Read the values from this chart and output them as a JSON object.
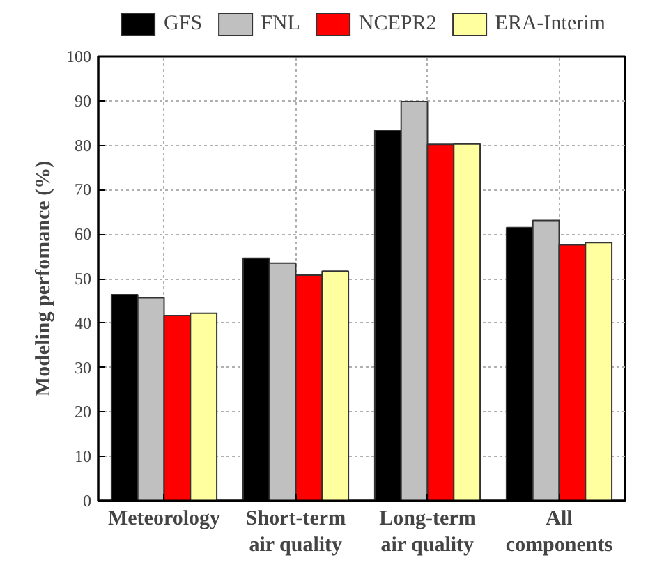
{
  "chart_data": {
    "type": "bar",
    "ylabel": "Modeling perfomance (%)",
    "categories": [
      "Meteorology",
      "Short-term\nair quality",
      "Long-term\nair quality",
      "All\ncomponents"
    ],
    "series": [
      {
        "name": "GFS",
        "color": "#000000",
        "values": [
          46.4,
          54.6,
          83.4,
          61.5
        ]
      },
      {
        "name": "FNL",
        "color": "#c0c0c0",
        "values": [
          45.7,
          53.5,
          89.8,
          63.1
        ]
      },
      {
        "name": "NCEPR2",
        "color": "#ff0000",
        "values": [
          41.7,
          50.8,
          80.2,
          57.6
        ]
      },
      {
        "name": "ERA-Interim",
        "color": "#ffffa0",
        "values": [
          42.2,
          51.7,
          80.3,
          58.1
        ]
      }
    ],
    "ylim": [
      0,
      100
    ],
    "yticks": [
      0,
      10,
      20,
      30,
      40,
      50,
      60,
      70,
      80,
      90,
      100
    ],
    "grid": true,
    "legend": "top"
  }
}
